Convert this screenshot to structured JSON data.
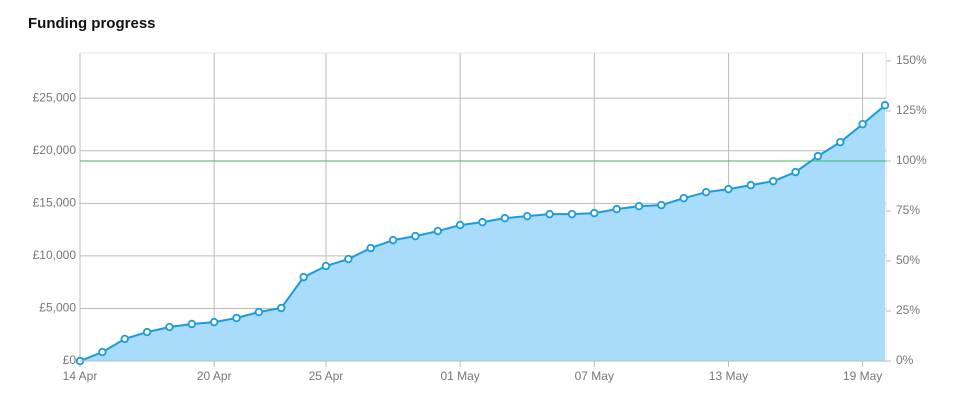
{
  "chart_data": {
    "type": "area",
    "title": "Funding progress",
    "categories": [
      "14 Apr",
      null,
      null,
      null,
      null,
      null,
      "20 Apr",
      null,
      null,
      null,
      null,
      "25 Apr",
      null,
      null,
      null,
      null,
      null,
      "01 May",
      null,
      null,
      null,
      null,
      null,
      "07 May",
      null,
      null,
      null,
      null,
      null,
      "13 May",
      null,
      null,
      null,
      null,
      null,
      "19 May",
      null
    ],
    "series": [
      {
        "name": "Funding",
        "color": "#1a9be0",
        "fill": "#a8dcfa",
        "values": [
          0,
          850,
          2100,
          2750,
          3230,
          3520,
          3700,
          4090,
          4660,
          5040,
          7980,
          9030,
          9700,
          10740,
          11500,
          11880,
          12360,
          12930,
          13210,
          13590,
          13780,
          13970,
          13970,
          14070,
          14450,
          14730,
          14830,
          15490,
          16060,
          16350,
          16730,
          17110,
          17970,
          19490,
          20820,
          22530,
          24330
        ]
      }
    ],
    "ylim": [
      0,
      29300
    ],
    "yticks": [
      {
        "value": 0,
        "label": "£0"
      },
      {
        "value": 5000,
        "label": "£5,000"
      },
      {
        "value": 10000,
        "label": "£10,000"
      },
      {
        "value": 15000,
        "label": "£15,000"
      },
      {
        "value": 20000,
        "label": "£20,000"
      },
      {
        "value": 25000,
        "label": "£25,000"
      }
    ],
    "y2lim": [
      0,
      154
    ],
    "y2ticks": [
      {
        "value": 0,
        "label": "0%"
      },
      {
        "value": 25,
        "label": "25%"
      },
      {
        "value": 50,
        "label": "50%"
      },
      {
        "value": 75,
        "label": "75%"
      },
      {
        "value": 100,
        "label": "100%"
      },
      {
        "value": 125,
        "label": "125%"
      },
      {
        "value": 150,
        "label": "150%"
      }
    ],
    "target": {
      "value": 100,
      "axis": "y2",
      "color": "#3cb371"
    },
    "grid": true
  }
}
